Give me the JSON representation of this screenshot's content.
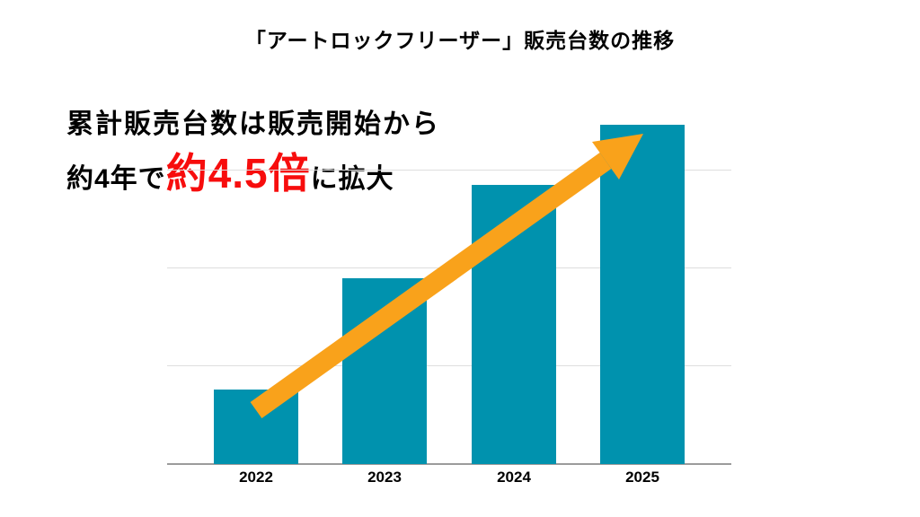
{
  "title": "「アートロックフリーザー」販売台数の推移",
  "annotation": {
    "line1": "累計販売台数は販売開始から",
    "line2_prefix": "約4年で",
    "line2_highlight": "約4.5倍",
    "line2_suffix": "に拡大"
  },
  "colors": {
    "background": "#ffffff",
    "bar": "#0092ae",
    "arrow": "#f9a21b",
    "highlight_text": "#f70d0d",
    "text": "#000000",
    "gridline": "#dedede",
    "axis_line": "#9b9b9b"
  },
  "chart_data": {
    "type": "bar",
    "title": "「アートロックフリーザー」販売台数の推移",
    "categories": [
      "2022",
      "2023",
      "2024",
      "2025"
    ],
    "values": [
      0.76,
      1.9,
      2.85,
      3.47
    ],
    "values_unit_note": "no y-axis labels shown; values measured in gridline-spacing units",
    "values_relative_to_2022": [
      1.0,
      2.5,
      3.75,
      4.55
    ],
    "xlabel": "",
    "ylabel": "",
    "ylim": [
      0,
      4
    ],
    "gridlines_y": [
      1,
      2,
      3
    ],
    "grid": true,
    "legend": false,
    "annotations": [
      "累計販売台数は販売開始から約4年で約4.5倍に拡大",
      "orange upward trend arrow from 2022 bar to 2025 bar top"
    ]
  }
}
